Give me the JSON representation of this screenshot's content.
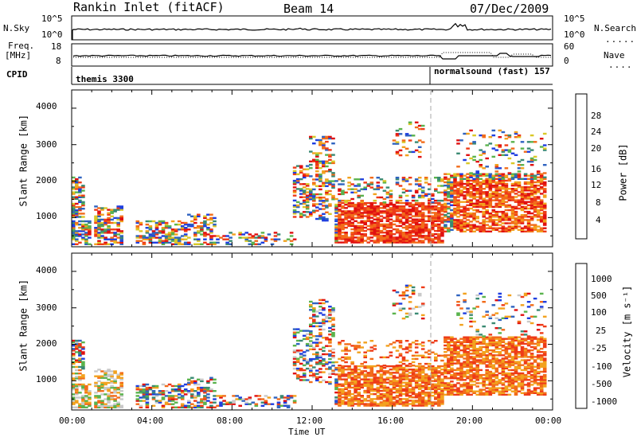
{
  "header": {
    "station": "Rankin Inlet (fitACF)",
    "beam": "Beam 14",
    "date": "07/Dec/2009"
  },
  "top_panels": {
    "nsky_label": "N.Sky",
    "nsky_ticks": [
      "10^5",
      "10^0"
    ],
    "nsearch_ticks": [
      "10^5",
      "10^0"
    ],
    "nsearch_label": "N.Search",
    "freq_label": "Freq.",
    "freq_unit": "[MHz]",
    "freq_ticks": [
      "18",
      "8"
    ],
    "nave_ticks": [
      "60",
      "0"
    ],
    "nave_label": "Nave",
    "cpid_label": "CPID",
    "cpid_1": "themis 3300",
    "cpid_2": "normalsound (fast) 157"
  },
  "chart_data": [
    {
      "type": "heatmap",
      "name": "Power",
      "ylabel": "Slant Range [km]",
      "y_ticks": [
        "4000",
        "3000",
        "2000",
        "1000"
      ],
      "ylim": [
        200,
        4500
      ],
      "x_ticks": [
        "00:00",
        "04:00",
        "08:00",
        "12:00",
        "16:00",
        "20:00",
        "00:00"
      ],
      "colorbar_label": "Power [dB]",
      "colorbar_ticks": [
        "28",
        "24",
        "20",
        "16",
        "12",
        "8",
        "4"
      ],
      "colors": [
        "#1f3ee0",
        "#2f63c0",
        "#3a8a73",
        "#5ab34d",
        "#d9c827",
        "#f2a21e",
        "#f26c1a",
        "#ee3b18",
        "#e01010"
      ]
    },
    {
      "type": "heatmap",
      "name": "Velocity",
      "ylabel": "Slant Range [km]",
      "y_ticks": [
        "4000",
        "3000",
        "2000",
        "1000"
      ],
      "ylim": [
        200,
        4500
      ],
      "x_ticks": [
        "00:00",
        "04:00",
        "08:00",
        "12:00",
        "16:00",
        "20:00",
        "00:00"
      ],
      "xlabel": "Time UT",
      "colorbar_label": "Velocity [m s⁻¹]",
      "colorbar_ticks": [
        "1000",
        "500",
        "100",
        "25",
        "-25",
        "-100",
        "-500",
        "-1000"
      ],
      "colors": [
        "#1f3ee0",
        "#2f63c0",
        "#3a8a73",
        "#5ab34d",
        "#c9c9c9",
        "#f2a21e",
        "#f26c1a",
        "#ee3b18",
        "#e01010"
      ]
    }
  ]
}
